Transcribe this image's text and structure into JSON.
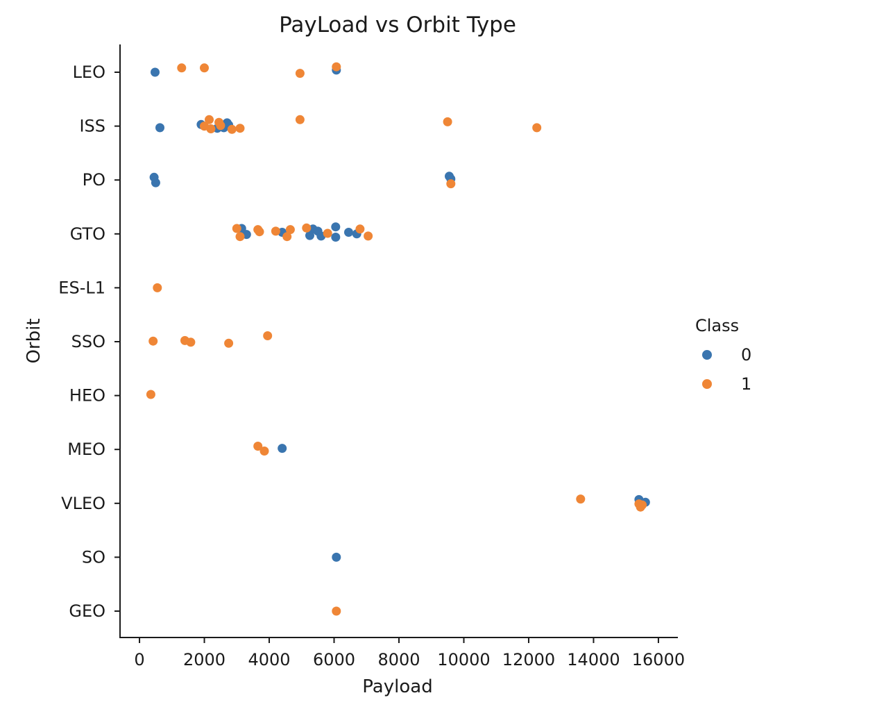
{
  "chart_data": {
    "type": "scatter",
    "title": "PayLoad vs Orbit Type",
    "xlabel": "Payload",
    "ylabel": "Orbit",
    "xlim": [
      -600,
      16600
    ],
    "xticks": [
      0,
      2000,
      4000,
      6000,
      8000,
      10000,
      12000,
      14000,
      16000
    ],
    "categories": [
      "LEO",
      "ISS",
      "PO",
      "GTO",
      "ES-L1",
      "SSO",
      "HEO",
      "MEO",
      "VLEO",
      "SO",
      "GEO"
    ],
    "grid": false,
    "legend": {
      "title": "Class",
      "placement": "right",
      "entries": [
        "0",
        "1"
      ]
    },
    "colors": {
      "0": "#3a75af",
      "1": "#ef8636"
    },
    "series": [
      {
        "name": "0",
        "points": [
          {
            "x": 480,
            "y": "LEO",
            "j": 0.0
          },
          {
            "x": 6070,
            "y": "LEO",
            "j": -0.04
          },
          {
            "x": 630,
            "y": "ISS",
            "j": 0.03
          },
          {
            "x": 1900,
            "y": "ISS",
            "j": -0.03
          },
          {
            "x": 2400,
            "y": "ISS",
            "j": 0.04
          },
          {
            "x": 2600,
            "y": "ISS",
            "j": 0.03
          },
          {
            "x": 2700,
            "y": "ISS",
            "j": -0.06
          },
          {
            "x": 2750,
            "y": "ISS",
            "j": -0.02
          },
          {
            "x": 450,
            "y": "PO",
            "j": -0.05
          },
          {
            "x": 500,
            "y": "PO",
            "j": 0.05
          },
          {
            "x": 9550,
            "y": "PO",
            "j": -0.07
          },
          {
            "x": 9600,
            "y": "PO",
            "j": -0.02
          },
          {
            "x": 3150,
            "y": "GTO",
            "j": -0.1
          },
          {
            "x": 3300,
            "y": "GTO",
            "j": 0.01
          },
          {
            "x": 4400,
            "y": "GTO",
            "j": -0.03
          },
          {
            "x": 5250,
            "y": "GTO",
            "j": 0.03
          },
          {
            "x": 5350,
            "y": "GTO",
            "j": -0.09
          },
          {
            "x": 5500,
            "y": "GTO",
            "j": -0.05
          },
          {
            "x": 5600,
            "y": "GTO",
            "j": 0.04
          },
          {
            "x": 6050,
            "y": "GTO",
            "j": -0.13
          },
          {
            "x": 6050,
            "y": "GTO",
            "j": 0.06
          },
          {
            "x": 6450,
            "y": "GTO",
            "j": -0.03
          },
          {
            "x": 6700,
            "y": "GTO",
            "j": 0.0
          },
          {
            "x": 4400,
            "y": "MEO",
            "j": -0.02
          },
          {
            "x": 15400,
            "y": "VLEO",
            "j": -0.07
          },
          {
            "x": 15450,
            "y": "VLEO",
            "j": 0.04
          },
          {
            "x": 15600,
            "y": "VLEO",
            "j": -0.02
          },
          {
            "x": 6070,
            "y": "SO",
            "j": 0.0
          }
        ]
      },
      {
        "name": "1",
        "points": [
          {
            "x": 1300,
            "y": "LEO",
            "j": -0.08
          },
          {
            "x": 2000,
            "y": "LEO",
            "j": -0.08
          },
          {
            "x": 4950,
            "y": "LEO",
            "j": 0.02
          },
          {
            "x": 6070,
            "y": "LEO",
            "j": -0.1
          },
          {
            "x": 2000,
            "y": "ISS",
            "j": 0.0
          },
          {
            "x": 2150,
            "y": "ISS",
            "j": -0.12
          },
          {
            "x": 2200,
            "y": "ISS",
            "j": 0.05
          },
          {
            "x": 2450,
            "y": "ISS",
            "j": -0.07
          },
          {
            "x": 2500,
            "y": "ISS",
            "j": -0.01
          },
          {
            "x": 2850,
            "y": "ISS",
            "j": 0.06
          },
          {
            "x": 3100,
            "y": "ISS",
            "j": 0.04
          },
          {
            "x": 4950,
            "y": "ISS",
            "j": -0.12
          },
          {
            "x": 9500,
            "y": "ISS",
            "j": -0.08
          },
          {
            "x": 12250,
            "y": "ISS",
            "j": 0.03
          },
          {
            "x": 9600,
            "y": "PO",
            "j": 0.07
          },
          {
            "x": 3000,
            "y": "GTO",
            "j": -0.1
          },
          {
            "x": 3100,
            "y": "GTO",
            "j": 0.05
          },
          {
            "x": 3650,
            "y": "GTO",
            "j": -0.08
          },
          {
            "x": 3700,
            "y": "GTO",
            "j": -0.04
          },
          {
            "x": 4200,
            "y": "GTO",
            "j": -0.05
          },
          {
            "x": 4550,
            "y": "GTO",
            "j": 0.05
          },
          {
            "x": 4650,
            "y": "GTO",
            "j": -0.08
          },
          {
            "x": 5150,
            "y": "GTO",
            "j": -0.11
          },
          {
            "x": 5800,
            "y": "GTO",
            "j": -0.01
          },
          {
            "x": 6800,
            "y": "GTO",
            "j": -0.09
          },
          {
            "x": 7050,
            "y": "GTO",
            "j": 0.04
          },
          {
            "x": 550,
            "y": "ES-L1",
            "j": 0.0
          },
          {
            "x": 420,
            "y": "SSO",
            "j": -0.01
          },
          {
            "x": 1400,
            "y": "SSO",
            "j": -0.02
          },
          {
            "x": 1580,
            "y": "SSO",
            "j": 0.01
          },
          {
            "x": 2750,
            "y": "SSO",
            "j": 0.03
          },
          {
            "x": 3950,
            "y": "SSO",
            "j": -0.11
          },
          {
            "x": 350,
            "y": "HEO",
            "j": -0.02
          },
          {
            "x": 3650,
            "y": "MEO",
            "j": -0.06
          },
          {
            "x": 3850,
            "y": "MEO",
            "j": 0.03
          },
          {
            "x": 13600,
            "y": "VLEO",
            "j": -0.08
          },
          {
            "x": 15400,
            "y": "VLEO",
            "j": 0.01
          },
          {
            "x": 15450,
            "y": "VLEO",
            "j": 0.07
          },
          {
            "x": 15500,
            "y": "VLEO",
            "j": 0.03
          },
          {
            "x": 6070,
            "y": "GEO",
            "j": 0.0
          }
        ]
      }
    ]
  }
}
